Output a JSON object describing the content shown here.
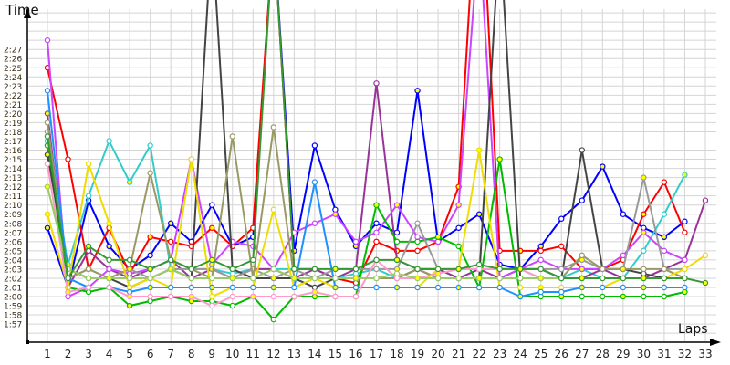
{
  "chart_data": {
    "type": "line",
    "ylabel": "Time",
    "xlabel": "Laps",
    "grid": true,
    "x": [
      1,
      2,
      3,
      4,
      5,
      6,
      7,
      8,
      9,
      10,
      11,
      12,
      13,
      14,
      15,
      16,
      17,
      18,
      19,
      20,
      21,
      22,
      23,
      24,
      25,
      26,
      27,
      28,
      29,
      30,
      31,
      32,
      33
    ],
    "ylim": [
      "1:56",
      "2:32"
    ],
    "yticks": [
      "1:57",
      "1:58",
      "1:59",
      "2:00",
      "2:01",
      "2:02",
      "2:03",
      "2:04",
      "2:05",
      "2:06",
      "2:07",
      "2:08",
      "2:09",
      "2:10",
      "2:11",
      "2:12",
      "2:13",
      "2:14",
      "2:15",
      "2:16",
      "2:17",
      "2:18",
      "2:19",
      "2:20",
      "2:21",
      "2:22",
      "2:23",
      "2:24",
      "2:25",
      "2:26",
      "2:27"
    ],
    "series": [
      {
        "color": "#0000ff",
        "values": [
          "2:07.5",
          "2:01",
          "2:10.5",
          "2:05.5",
          "2:03",
          "2:04.5",
          "2:08",
          "2:06",
          "2:10",
          "2:05.5",
          "2:06.5",
          "2:40",
          "2:05",
          "2:16.5",
          "2:09.5",
          "2:05.5",
          "2:08",
          "2:07",
          "2:22.5",
          "2:06",
          "2:07.5",
          "2:09",
          "2:03.5",
          "2:03",
          "2:05.5",
          "2:08.5",
          "2:10.5",
          "2:14.2",
          "2:09",
          "2:07.5",
          "2:06.5",
          "2:08.2",
          null
        ]
      },
      {
        "color": "#ff0000",
        "values": [
          "2:25",
          "2:15",
          "2:03",
          "2:07.5",
          "2:02.5",
          "2:06.5",
          "2:06",
          "2:05.5",
          "2:07.5",
          "2:05.5",
          "2:07.5",
          "2:40",
          "2:03",
          "2:03",
          "2:02",
          "2:01.5",
          "2:06",
          "2:05",
          "2:05",
          "2:06",
          "2:12",
          "2:50",
          "2:05",
          "2:05",
          "2:05",
          "2:05.5",
          "2:03",
          "2:03",
          "2:04",
          "2:09",
          "2:12.5",
          "2:07",
          null
        ]
      },
      {
        "color": "#33cccc",
        "values": [
          "2:17",
          "2:03.5",
          "2:11",
          "2:17",
          "2:12.5",
          "2:16.5",
          "2:03",
          "2:03",
          "2:03",
          "2:02.5",
          "2:03",
          "2:03",
          "2:03",
          "2:03",
          "2:02",
          "2:02.5",
          "2:03",
          "2:02",
          "2:03",
          "2:03",
          "2:02",
          "2:03",
          "2:03",
          "2:03",
          "2:02",
          "2:02",
          "2:03",
          "2:02",
          "2:02",
          "2:05",
          "2:09",
          "2:13.3",
          null
        ]
      },
      {
        "color": "#993399",
        "values": [
          "2:20",
          "2:01",
          "2:05",
          "2:03",
          "2:02",
          "2:03",
          "2:04",
          "2:02",
          "2:03",
          "2:02",
          "2:03",
          "2:03",
          "2:02",
          "2:03",
          "2:02",
          "2:03",
          "2:23.3",
          "2:04",
          "2:03",
          "2:03",
          "2:02",
          "2:03",
          "2:02",
          "2:03",
          "2:03",
          "2:02",
          "2:02",
          "2:03",
          "2:02",
          "2:02",
          "2:03",
          "2:04",
          "2:10.5"
        ]
      },
      {
        "color": "#cc44ff",
        "values": [
          "2:28",
          "2:00",
          "2:01",
          "2:03",
          "2:02.5",
          "2:03",
          "2:04",
          "2:15",
          "2:03.5",
          "2:06",
          "2:05.5",
          "2:03",
          "2:07",
          "2:08",
          "2:09",
          "2:06",
          "2:07",
          "2:10",
          "2:06.5",
          "2:06",
          "2:10",
          "2:40",
          "2:02",
          "2:03",
          "2:04",
          "2:03",
          "2:03",
          "2:03",
          "2:04.5",
          "2:07",
          "2:05",
          "2:04",
          null
        ]
      },
      {
        "color": "#00bb00",
        "values": [
          "2:16.5",
          "2:01",
          "2:00.5",
          "2:01",
          "1:59",
          "1:59.5",
          "2:00",
          "1:59.5",
          "1:59.5",
          "1:59",
          "2:00",
          "1:57.5",
          "2:00",
          "2:00",
          "2:00",
          "2:00",
          "2:10",
          "2:06",
          "2:06",
          "2:06.5",
          "2:05.5",
          "2:01",
          "2:15",
          "2:00",
          "2:00",
          "2:00",
          "2:00",
          "2:00",
          "2:00",
          "2:00",
          "2:00",
          "2:00.5",
          null
        ]
      },
      {
        "color": "#444444",
        "values": [
          "2:15.5",
          "2:03",
          "2:02",
          "2:02",
          "2:01",
          "2:02",
          "2:03",
          "2:02",
          "2:40",
          "2:03",
          "2:02",
          "2:02",
          "2:02",
          "2:01",
          "2:02",
          "2:02",
          "2:02",
          "2:02",
          "2:03",
          "2:02",
          "2:02",
          "2:02",
          "2:40",
          "2:02",
          "2:02",
          "2:02",
          "2:16",
          "2:03",
          "2:03",
          "2:02.5",
          "2:02",
          "2:02",
          null
        ]
      },
      {
        "color": "#999999",
        "values": [
          "2:18",
          "2:02",
          "2:03",
          "2:02",
          "2:03",
          "2:02",
          "2:03",
          "2:03",
          "2:03",
          "2:02",
          "2:03",
          "2:02",
          "2:03",
          "2:02",
          "2:03",
          "2:03",
          "2:03",
          "2:03",
          "2:08",
          "2:03",
          "2:03",
          "2:03",
          "2:03",
          "2:03",
          "2:03",
          "2:03",
          "2:04",
          "2:03",
          "2:03",
          "2:13",
          "2:03",
          "2:03",
          null
        ]
      },
      {
        "color": "#999966",
        "values": [
          "2:19",
          "2:02",
          "2:03",
          "2:02",
          "2:03",
          "2:13.5",
          "2:04",
          "2:03",
          "2:02",
          "2:17.5",
          "2:02",
          "2:18.5",
          "2:02",
          "2:02",
          "2:02",
          "2:02",
          "2:02",
          "2:02",
          "2:03",
          "2:02",
          "2:02",
          "2:02",
          "2:02",
          "2:02",
          "2:02",
          "2:02",
          "2:04.5",
          "2:03",
          "2:03",
          "2:03",
          "2:03",
          "2:02",
          null
        ]
      },
      {
        "color": "#eedd00",
        "values": [
          "2:09",
          "2:01",
          "2:14.5",
          "2:08",
          "2:01",
          "2:02",
          "2:01",
          "2:15",
          "2:00",
          "2:01",
          "2:01",
          "2:09.5",
          "2:01",
          "2:02",
          "2:01",
          "2:01",
          "2:01",
          "2:01",
          "2:01",
          "2:03",
          "2:03",
          "2:16",
          "2:01",
          "2:01",
          "2:01",
          "2:01",
          "2:01",
          "2:01",
          "2:02",
          "2:02",
          "2:02",
          "2:03",
          "2:04.5"
        ]
      },
      {
        "color": "#1e90ff",
        "values": [
          "2:22.5",
          "2:02",
          "2:01",
          "2:01",
          "2:00.5",
          "2:01",
          "2:01",
          "2:01",
          "2:01",
          "2:01",
          "2:01",
          "2:01",
          "2:01",
          "2:12.5",
          "2:01",
          "2:01",
          "2:01",
          "2:01",
          "2:01",
          "2:01",
          "2:01",
          "2:01",
          "2:01",
          "2:00",
          "2:00.5",
          "2:00.5",
          "2:01",
          "2:01",
          "2:01",
          "2:01",
          "2:01",
          "2:01",
          null
        ]
      },
      {
        "color": "#ff99cc",
        "values": [
          "2:14.5",
          "2:00.5",
          "2:01",
          "2:01",
          "2:00",
          "2:00",
          "2:00",
          "2:00",
          "1:59",
          "2:00",
          "2:00",
          "2:00",
          "2:00",
          "2:00.5",
          "2:00",
          "2:00",
          "2:04",
          "2:02",
          "2:02",
          "2:02.5",
          "2:03",
          "2:03",
          "2:03",
          "2:03",
          "2:02",
          "2:02",
          "2:02",
          "2:02",
          "2:02",
          "2:02",
          "2:02",
          "2:02",
          null
        ]
      },
      {
        "color": "#99cc66",
        "values": [
          "2:12",
          "2:03",
          "2:02",
          "2:02",
          "2:02",
          "2:02",
          "2:03",
          "2:02",
          "2:02",
          "2:02",
          "2:02",
          "2:03",
          "2:02",
          "2:02",
          "2:02",
          "2:02",
          "2:02",
          "2:02.5",
          "2:02",
          "2:02",
          "2:02",
          "2:02",
          "2:02",
          "2:02",
          "2:02",
          "2:02",
          "2:02",
          "2:02",
          "2:02",
          "2:02",
          "2:02",
          "2:02",
          null
        ]
      },
      {
        "color": "#339933",
        "values": [
          "2:17.5",
          "2:02",
          "2:05.5",
          "2:04",
          "2:04",
          "2:03",
          "2:04",
          "2:03",
          "2:04",
          "2:03",
          "2:04",
          "2:40",
          "2:03",
          "2:03",
          "2:03",
          "2:03",
          "2:04",
          "2:04",
          "2:03",
          "2:03",
          "2:03",
          "2:03.5",
          "2:03",
          "2:03",
          "2:03",
          "2:02",
          "2:02",
          "2:02",
          "2:02",
          "2:02",
          "2:02",
          "2:02",
          "2:01.5"
        ]
      }
    ]
  }
}
